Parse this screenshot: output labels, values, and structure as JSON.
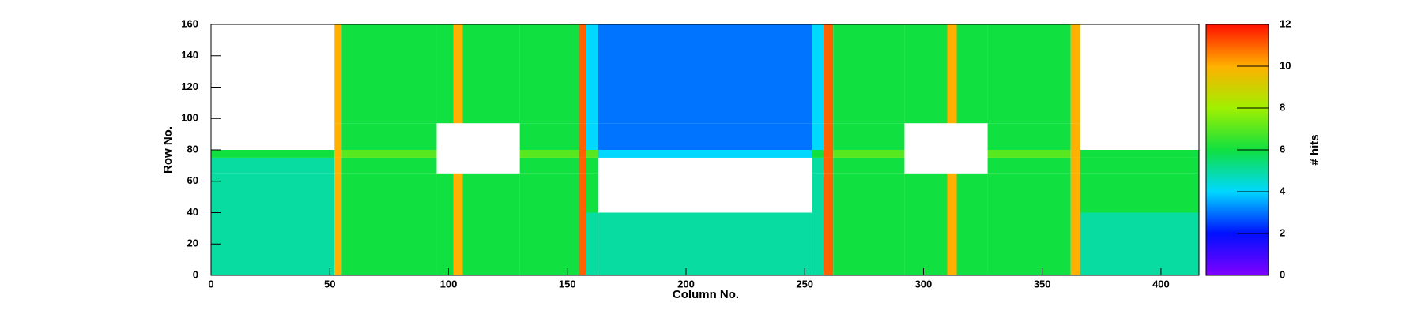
{
  "chart_data": {
    "type": "heatmap",
    "x_label": "Column No.",
    "y_label": "Row No.",
    "z_label": "# hits",
    "x_edges": [
      0,
      52,
      55,
      95,
      102,
      106,
      130,
      155,
      158,
      163,
      253,
      258,
      262,
      292,
      310,
      314,
      327,
      362,
      366,
      416
    ],
    "y_edges": [
      0,
      40,
      65,
      75,
      80,
      97,
      160
    ],
    "z": [
      [
        5,
        10,
        6,
        6,
        10,
        6,
        6,
        11,
        5,
        5,
        5,
        11,
        6,
        6,
        10,
        6,
        6,
        10,
        5
      ],
      [
        5,
        10,
        6,
        6,
        10,
        6,
        6,
        11,
        6,
        null,
        5,
        11,
        6,
        6,
        10,
        6,
        6,
        10,
        6
      ],
      [
        5,
        10,
        6,
        null,
        null,
        null,
        6,
        11,
        6,
        null,
        5,
        11,
        6,
        null,
        null,
        null,
        6,
        10,
        6
      ],
      [
        6,
        10,
        7,
        null,
        null,
        null,
        7,
        11,
        7,
        4,
        6,
        11,
        7,
        null,
        null,
        null,
        7,
        10,
        6
      ],
      [
        null,
        10,
        6,
        null,
        null,
        null,
        6,
        11,
        4,
        3,
        4,
        11,
        6,
        null,
        null,
        null,
        6,
        10,
        null
      ],
      [
        null,
        10,
        6,
        6,
        10,
        6,
        6,
        11,
        4,
        3,
        4,
        11,
        6,
        6,
        10,
        6,
        6,
        10,
        null
      ]
    ],
    "xlim": [
      0,
      416
    ],
    "xticks": [
      0,
      50,
      100,
      150,
      200,
      250,
      300,
      350,
      400
    ],
    "ylim": [
      0,
      160
    ],
    "yticks": [
      0,
      20,
      40,
      60,
      80,
      100,
      120,
      140,
      160
    ],
    "zlim": [
      0,
      12
    ],
    "zticks": [
      0,
      2,
      4,
      6,
      8,
      10,
      12
    ],
    "colorscale": [
      [
        0,
        "#8000ff"
      ],
      [
        2,
        "#0010ff"
      ],
      [
        4,
        "#00d8ff"
      ],
      [
        6,
        "#10e040"
      ],
      [
        8,
        "#a0f000"
      ],
      [
        10,
        "#ffb000"
      ],
      [
        12,
        "#ff1000"
      ]
    ]
  }
}
